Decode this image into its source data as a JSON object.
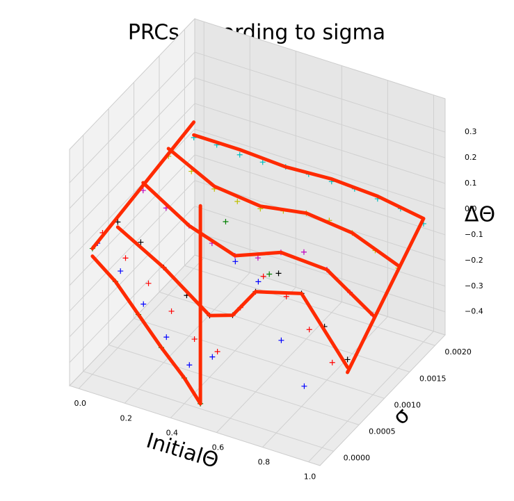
{
  "chart_data": {
    "type": "scatter3d",
    "title": "PRCs according to sigma",
    "xlabel": "InitialΘ",
    "ylabel": "σ",
    "zlabel": "ΔΘ",
    "xlim": [
      -0.04,
      1.05
    ],
    "ylim": [
      -0.00027,
      0.0022
    ],
    "zlim": [
      -0.49,
      0.43
    ],
    "xticks": [
      {
        "value": 0,
        "label": "0.0"
      },
      0.2,
      0.4,
      0.6,
      0.8,
      {
        "value": 1,
        "label": "1.0"
      }
    ],
    "yticks": [
      {
        "value": 0,
        "label": "0.0000"
      },
      {
        "value": 0.0005,
        "label": "0.0005"
      },
      {
        "value": 0.001,
        "label": "0.0010"
      },
      {
        "value": 0.0015,
        "label": "0.0015"
      },
      {
        "value": 0.002,
        "label": "0.0020"
      }
    ],
    "zticks": [
      {
        "value": -0.4,
        "label": "−0.4"
      },
      {
        "value": -0.3,
        "label": "−0.3"
      },
      {
        "value": -0.2,
        "label": "−0.2"
      },
      {
        "value": -0.1,
        "label": "−0.1"
      },
      {
        "value": 0,
        "label": "0.0"
      },
      0.1,
      0.2,
      0.3
    ],
    "grid": true,
    "marker": "+",
    "series": [
      {
        "color": "#008000",
        "sigma": 0,
        "x": [
          0,
          0.1,
          0.2,
          0.3,
          0.4,
          0.47,
          0.58,
          0.77
        ],
        "values": [
          0,
          -0.1,
          -0.2,
          -0.3,
          -0.39,
          -0.47,
          0.27,
          0.12
        ]
      },
      {
        "color": "#0000ff",
        "sigma": 0.0001,
        "x": [
          0,
          0.1,
          0.2,
          0.3,
          0.4,
          0.5,
          0.6,
          0.7,
          0.8,
          0.9
        ],
        "values": [
          0,
          -0.08,
          -0.18,
          -0.28,
          -0.36,
          -0.3,
          0.1,
          0.05,
          -0.15,
          -0.3
        ]
      },
      {
        "color": "#ff0000",
        "sigma": 0.0002,
        "x": [
          0,
          0.1,
          0.2,
          0.3,
          0.4,
          0.5,
          0.6,
          0.7,
          0.8,
          0.9,
          1.0
        ],
        "values": [
          0.02,
          -0.05,
          -0.12,
          -0.2,
          -0.28,
          -0.3,
          -0.1,
          0.05,
          0,
          -0.1,
          -0.2
        ]
      },
      {
        "color": "#000000",
        "sigma": 0.0005,
        "x": [
          0,
          0.1,
          0.2,
          0.3,
          0.4,
          0.5,
          0.6,
          0.7,
          0.8,
          0.9,
          1.0
        ],
        "values": [
          0,
          -0.05,
          -0.12,
          -0.2,
          -0.25,
          -0.22,
          -0.1,
          0,
          -0.05,
          -0.15,
          -0.25
        ]
      },
      {
        "color": "#bf00bf",
        "sigma": 0.001,
        "x": [
          0,
          0.1,
          0.2,
          0.3,
          0.4,
          0.5,
          0.6,
          0.7,
          0.8,
          0.9,
          1.0
        ],
        "values": [
          0.02,
          -0.02,
          -0.06,
          -0.1,
          -0.12,
          -0.1,
          -0.05,
          -0.02,
          -0.06,
          -0.12,
          -0.18
        ]
      },
      {
        "color": "#bfbf00",
        "sigma": 0.0015,
        "x": [
          0,
          0.1,
          0.2,
          0.3,
          0.4,
          0.5,
          0.6,
          0.7,
          0.8,
          0.9,
          1.0
        ],
        "values": [
          0.05,
          0.02,
          -0.02,
          -0.04,
          -0.04,
          -0.02,
          0,
          0,
          -0.02,
          -0.06,
          -0.1
        ]
      },
      {
        "color": "#00bfbf",
        "sigma": 0.002,
        "x": [
          0,
          0.1,
          0.2,
          0.3,
          0.4,
          0.5,
          0.6,
          0.7,
          0.8,
          0.9,
          1.0
        ],
        "values": [
          0.02,
          0.02,
          0.01,
          0.01,
          0.02,
          0.02,
          0.02,
          0.02,
          0.01,
          0,
          -0.03
        ]
      }
    ],
    "lines": [
      {
        "color": "#ff2a00",
        "x": [
          0,
          0.2,
          0.4,
          0.6,
          0.8,
          1.0
        ],
        "y": [
          0.002,
          0.002,
          0.002,
          0.002,
          0.002,
          0.002
        ],
        "values": [
          0.03,
          0.03,
          0.02,
          0.03,
          0.02,
          -0.01
        ]
      },
      {
        "color": "#ff2a00",
        "x": [
          0,
          0.2,
          0.4,
          0.6,
          0.8,
          1.0
        ],
        "y": [
          0.0015,
          0.0015,
          0.0015,
          0.0015,
          0.0015,
          0.0015
        ],
        "values": [
          0.08,
          -0.01,
          -0.03,
          0,
          -0.02,
          -0.09
        ]
      },
      {
        "color": "#ff2a00",
        "x": [
          0,
          0.2,
          0.4,
          0.6,
          0.8,
          1.0
        ],
        "y": [
          0.001,
          0.001,
          0.001,
          0.001,
          0.001,
          0.001
        ],
        "values": [
          0.05,
          -0.06,
          -0.12,
          -0.05,
          -0.06,
          -0.18
        ]
      },
      {
        "color": "#ff2a00",
        "x": [
          0,
          0.2,
          0.4,
          0.5,
          0.6,
          0.8,
          1.0
        ],
        "y": [
          0.0005,
          0.0005,
          0.0005,
          0.0005,
          0.0005,
          0.0005,
          0.0005
        ],
        "values": [
          -0.02,
          -0.12,
          -0.25,
          -0.22,
          -0.1,
          -0.05,
          -0.28
        ]
      },
      {
        "color": "#ff2a00",
        "x": [
          0,
          0.1,
          0.2,
          0.3,
          0.4,
          0.47
        ],
        "y": [
          0,
          0,
          0,
          0,
          0,
          0
        ],
        "values": [
          -0.03,
          -0.1,
          -0.2,
          -0.3,
          -0.39,
          -0.47
        ]
      },
      {
        "color": "#ff2a00",
        "x": [
          0,
          0
        ],
        "y": [
          0,
          0.002
        ],
        "values": [
          0,
          0.08
        ]
      },
      {
        "color": "#ff2a00",
        "x": [
          0.47,
          0.47
        ],
        "y": [
          0,
          0
        ],
        "values": [
          -0.47,
          0.3
        ]
      },
      {
        "color": "#ff2a00",
        "x": [
          1.0,
          1.0
        ],
        "y": [
          0.0005,
          0.002
        ],
        "values": [
          -0.3,
          -0.01
        ]
      }
    ]
  }
}
